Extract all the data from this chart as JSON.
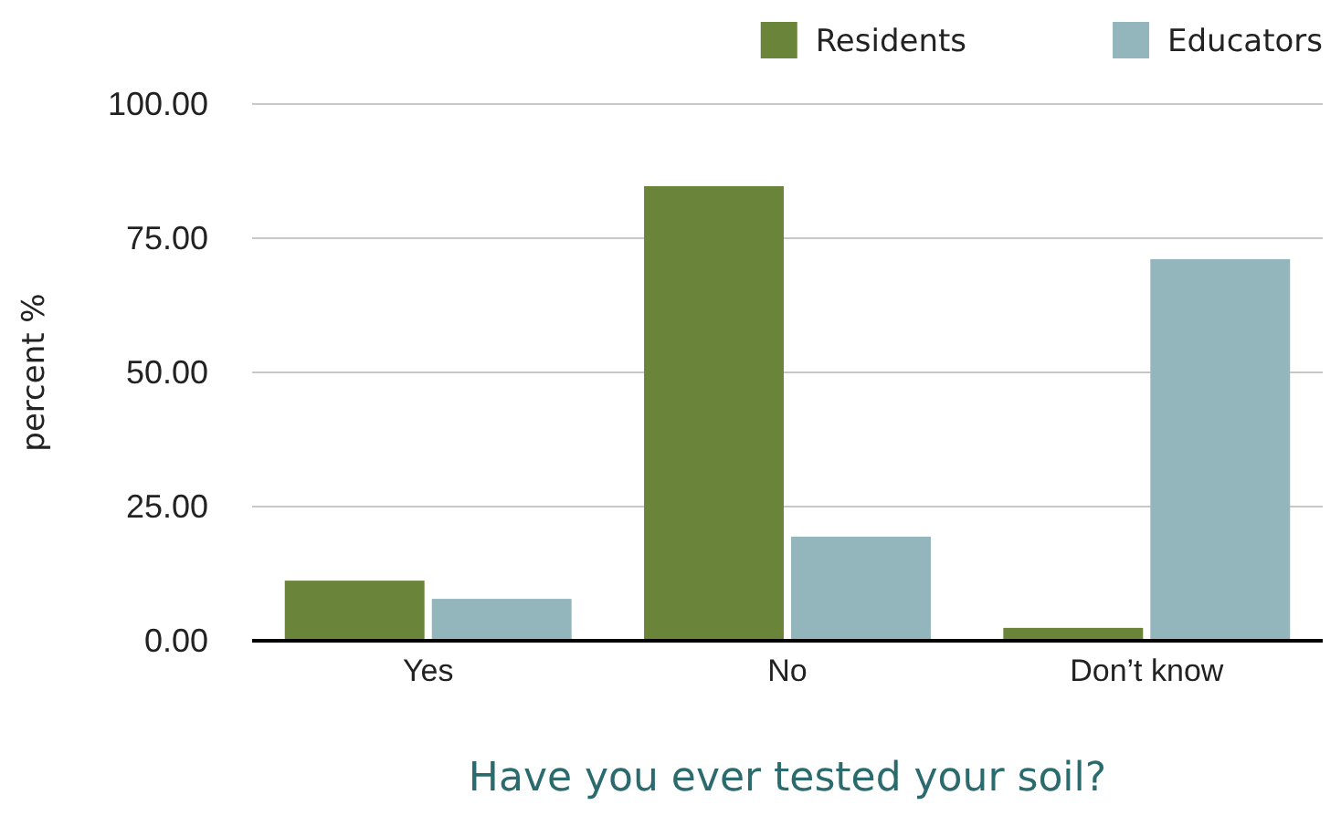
{
  "chart_data": {
    "type": "bar",
    "xlabel": "Have you ever tested your soil?",
    "ylabel": "percent %",
    "categories": [
      "Yes",
      "No",
      "Don’t know"
    ],
    "series": [
      {
        "name": "Residents",
        "color": "#6a843a",
        "values": [
          11.2,
          84.7,
          2.4
        ]
      },
      {
        "name": "Educators",
        "color": "#92b6bb",
        "values": [
          7.8,
          19.4,
          71.1
        ]
      }
    ],
    "ylim": [
      0,
      100
    ],
    "yticks": [
      {
        "value": 0,
        "label": "0.00"
      },
      {
        "value": 25,
        "label": "25.00"
      },
      {
        "value": 50,
        "label": "50.00"
      },
      {
        "value": 75,
        "label": "75.00"
      },
      {
        "value": 100,
        "label": "100.00"
      }
    ],
    "grid": "y",
    "legend": "top right"
  }
}
